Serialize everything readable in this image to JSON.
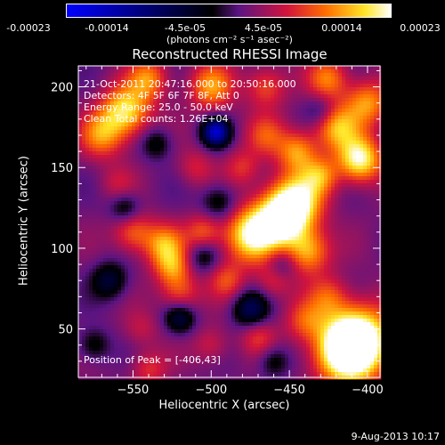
{
  "colorbar": {
    "ticks": [
      "-0.00023",
      "-0.00014",
      "-4.5e-05",
      "4.5e-05",
      "0.00014",
      "0.00023"
    ],
    "units": "(photons cm⁻² s⁻¹ asec⁻²)",
    "range": [
      -0.00023,
      0.00023
    ]
  },
  "info": {
    "time": "21-Oct-2011 20:47:16.000 to 20:50:16.000",
    "detectors": "Detectors: 4F 5F 6F 7F 8F, Att 0",
    "energy": "Energy Range: 25.0 - 50.0 keV",
    "method": "Clean    Total counts: 1.26E+04",
    "peak": "Position of Peak = [-406,43]"
  },
  "footer": {
    "date": "9-Aug-2013 10:17"
  },
  "chart_data": {
    "type": "heatmap",
    "title": "Reconstructed RHESSI Image",
    "xlabel": "Heliocentric X (arcsec)",
    "ylabel": "Heliocentric Y (arcsec)",
    "xlim": [
      -585,
      -392
    ],
    "ylim": [
      20,
      213
    ],
    "xticks": [
      -550,
      -500,
      -450,
      -400
    ],
    "yticks": [
      50,
      100,
      150,
      200
    ],
    "blobs": [
      {
        "x": -406,
        "y": 43,
        "v": 1.0,
        "s": 15
      },
      {
        "x": -415,
        "y": 35,
        "v": 0.7,
        "s": 14
      },
      {
        "x": -455,
        "y": 118,
        "v": 0.9,
        "s": 12
      },
      {
        "x": -475,
        "y": 108,
        "v": 0.8,
        "s": 12
      },
      {
        "x": -445,
        "y": 130,
        "v": 0.7,
        "s": 12
      },
      {
        "x": -438,
        "y": 98,
        "v": 0.6,
        "s": 10
      },
      {
        "x": -405,
        "y": 155,
        "v": 0.85,
        "s": 10
      },
      {
        "x": -420,
        "y": 175,
        "v": 0.6,
        "s": 10
      },
      {
        "x": -400,
        "y": 190,
        "v": 0.55,
        "s": 10
      },
      {
        "x": -445,
        "y": 160,
        "v": 0.55,
        "s": 9
      },
      {
        "x": -430,
        "y": 145,
        "v": 0.45,
        "s": 8
      },
      {
        "x": -465,
        "y": 170,
        "v": 0.35,
        "s": 9
      },
      {
        "x": -555,
        "y": 185,
        "v": 0.75,
        "s": 11
      },
      {
        "x": -570,
        "y": 170,
        "v": 0.5,
        "s": 10
      },
      {
        "x": -540,
        "y": 205,
        "v": 0.5,
        "s": 9
      },
      {
        "x": -500,
        "y": 200,
        "v": 0.55,
        "s": 10
      },
      {
        "x": -465,
        "y": 200,
        "v": 0.4,
        "s": 9
      },
      {
        "x": -425,
        "y": 205,
        "v": 0.5,
        "s": 9
      },
      {
        "x": -530,
        "y": 102,
        "v": 0.55,
        "s": 9
      },
      {
        "x": -550,
        "y": 110,
        "v": 0.45,
        "s": 9
      },
      {
        "x": -525,
        "y": 88,
        "v": 0.45,
        "s": 8
      },
      {
        "x": -520,
        "y": 72,
        "v": 0.4,
        "s": 9
      },
      {
        "x": -505,
        "y": 110,
        "v": 0.4,
        "s": 8
      },
      {
        "x": -490,
        "y": 80,
        "v": 0.35,
        "s": 8
      },
      {
        "x": -460,
        "y": 80,
        "v": 0.3,
        "s": 8
      },
      {
        "x": -480,
        "y": 150,
        "v": 0.3,
        "s": 8
      },
      {
        "x": -510,
        "y": 150,
        "v": 0.25,
        "s": 8
      },
      {
        "x": -560,
        "y": 140,
        "v": 0.2,
        "s": 8
      },
      {
        "x": -440,
        "y": 55,
        "v": 0.35,
        "s": 9
      },
      {
        "x": -425,
        "y": 70,
        "v": 0.35,
        "s": 9
      },
      {
        "x": -470,
        "y": 45,
        "v": 0.3,
        "s": 8
      },
      {
        "x": -500,
        "y": 40,
        "v": 0.25,
        "s": 8
      },
      {
        "x": -545,
        "y": 50,
        "v": 0.2,
        "s": 8
      },
      {
        "x": -540,
        "y": 25,
        "v": 0.3,
        "s": 8
      },
      {
        "x": -497,
        "y": 172,
        "v": -0.9,
        "s": 6
      },
      {
        "x": -475,
        "y": 62,
        "v": -0.5,
        "s": 8
      },
      {
        "x": -520,
        "y": 57,
        "v": -0.45,
        "s": 7
      },
      {
        "x": -565,
        "y": 80,
        "v": -0.4,
        "s": 8
      },
      {
        "x": -555,
        "y": 125,
        "v": -0.35,
        "s": 7
      },
      {
        "x": -495,
        "y": 128,
        "v": -0.35,
        "s": 8
      },
      {
        "x": -455,
        "y": 90,
        "v": -0.3,
        "s": 7
      },
      {
        "x": -505,
        "y": 95,
        "v": -0.3,
        "s": 7
      },
      {
        "x": -535,
        "y": 165,
        "v": -0.3,
        "s": 7
      },
      {
        "x": -430,
        "y": 185,
        "v": -0.25,
        "s": 7
      },
      {
        "x": -460,
        "y": 30,
        "v": -0.3,
        "s": 7
      },
      {
        "x": -575,
        "y": 40,
        "v": -0.3,
        "s": 7
      }
    ]
  }
}
